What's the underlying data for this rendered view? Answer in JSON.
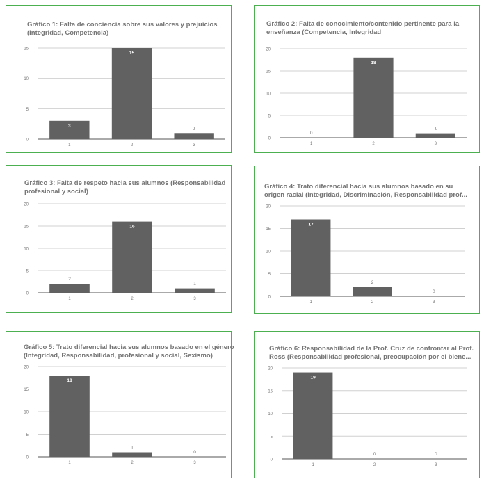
{
  "colors": {
    "bar": "#616161",
    "border": "#4caf50",
    "grid": "#d0d0d0",
    "axis": "#555555",
    "tick": "#757575"
  },
  "chart_data": [
    {
      "type": "bar",
      "title_lines": [
        "Gráfico 1: Falta de conciencia sobre sus valores y prejuicios",
        "(Integridad, Competencia)"
      ],
      "categories": [
        "1",
        "2",
        "3"
      ],
      "values": [
        3,
        15,
        1
      ],
      "ylim": [
        0,
        15
      ],
      "yticks": [
        "0",
        "5",
        "10",
        "15"
      ],
      "xlabel": "",
      "ylabel": "",
      "grid": true
    },
    {
      "type": "bar",
      "title_lines": [
        "Gráfico 2: Falta de conocimiento/contenido pertinente para la",
        "enseñanza (Competencia, Integridad"
      ],
      "categories": [
        "1",
        "2",
        "3"
      ],
      "values": [
        0,
        18,
        1
      ],
      "ylim": [
        0,
        20
      ],
      "yticks": [
        "0",
        "5",
        "10",
        "15",
        "20"
      ],
      "xlabel": "",
      "ylabel": "",
      "grid": true
    },
    {
      "type": "bar",
      "title_lines": [
        "Gráfico 3: Falta de respeto hacia sus alumnos (Responsabilidad",
        "profesional y social)"
      ],
      "categories": [
        "1",
        "2",
        "3"
      ],
      "values": [
        2,
        16,
        1
      ],
      "ylim": [
        0,
        20
      ],
      "yticks": [
        "0",
        "5",
        "10",
        "15",
        "20"
      ],
      "xlabel": "",
      "ylabel": "",
      "grid": true
    },
    {
      "type": "bar",
      "title_lines": [
        "Gráfico 4: Trato diferencial hacia sus alumnos basado en su",
        "origen racial (Integridad, Discriminación, Responsabilidad prof..."
      ],
      "categories": [
        "1",
        "2",
        "3"
      ],
      "values": [
        17,
        2,
        0
      ],
      "ylim": [
        0,
        20
      ],
      "yticks": [
        "0",
        "5",
        "10",
        "15",
        "20"
      ],
      "xlabel": "",
      "ylabel": "",
      "grid": true
    },
    {
      "type": "bar",
      "title_lines": [
        "Gráfico 5: Trato diferencial hacia sus alumnos basado en el género",
        "(Integridad, Responsabilidad, profesional y social, Sexismo)"
      ],
      "categories": [
        "1",
        "2",
        "3"
      ],
      "values": [
        18,
        1,
        0
      ],
      "ylim": [
        0,
        20
      ],
      "yticks": [
        "0",
        "5",
        "10",
        "15",
        "20"
      ],
      "xlabel": "",
      "ylabel": "",
      "grid": true
    },
    {
      "type": "bar",
      "title_lines": [
        "Gráfico 6: Responsabilidad de la Prof. Cruz de confrontar al Prof.",
        "Ross (Responsabilidad profesional, preocupación por el biene..."
      ],
      "categories": [
        "1",
        "2",
        "3"
      ],
      "values": [
        19,
        0,
        0
      ],
      "ylim": [
        0,
        20
      ],
      "yticks": [
        "0",
        "5",
        "10",
        "15",
        "20"
      ],
      "xlabel": "",
      "ylabel": "",
      "grid": true
    }
  ]
}
